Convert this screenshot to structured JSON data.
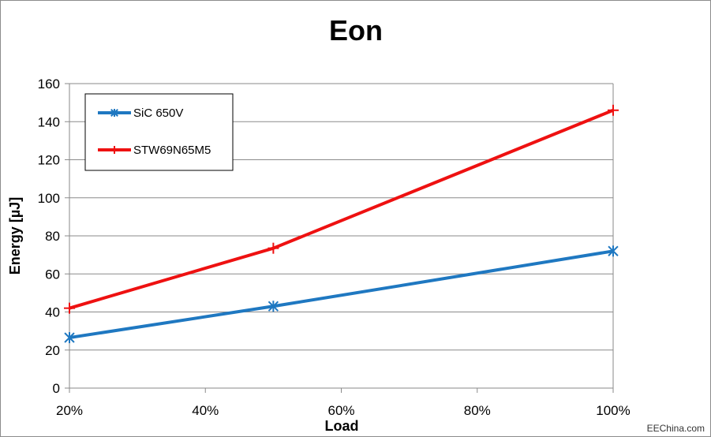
{
  "chart_data": {
    "type": "line",
    "title": "Eon",
    "xlabel": "Load",
    "ylabel": "Energy [µJ]",
    "x": [
      20,
      50,
      100
    ],
    "xlim": [
      20,
      100
    ],
    "xticks": [
      20,
      40,
      60,
      80,
      100
    ],
    "xtick_labels": [
      "20%",
      "40%",
      "60%",
      "80%",
      "100%"
    ],
    "ylim": [
      0,
      160
    ],
    "yticks": [
      0,
      20,
      40,
      60,
      80,
      100,
      120,
      140,
      160
    ],
    "ytick_labels": [
      "0",
      "20",
      "40",
      "60",
      "80",
      "100",
      "120",
      "140",
      "160"
    ],
    "grid": true,
    "legend_position": "top-left",
    "series": [
      {
        "name": "SiC 650V",
        "values": [
          26.5,
          43,
          72
        ],
        "color": "#1f78c1",
        "marker": "asterisk"
      },
      {
        "name": "STW69N65M5",
        "values": [
          42,
          73.5,
          146
        ],
        "color": "#ee1111",
        "marker": "plus"
      }
    ]
  },
  "watermark": "EEChina.com"
}
